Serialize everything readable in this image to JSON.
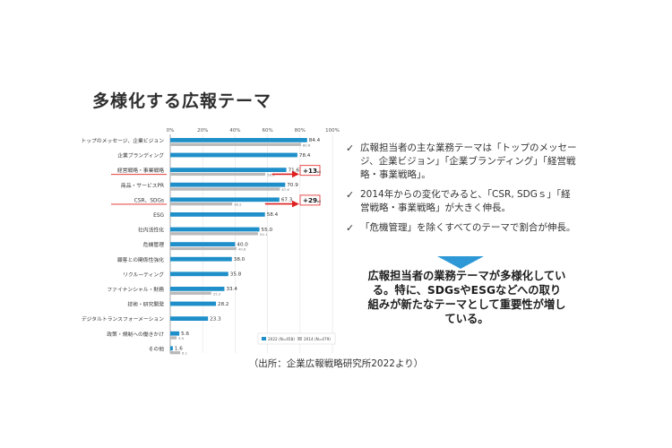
{
  "slide": {
    "title": "多様化する広報テーマ",
    "source": "（出所：企業広報戦略研究所2022より）"
  },
  "bullets": [
    "広報担当者の主な業務テーマは「トップのメッセージ、企業ビジョン」「企業ブランディング」「経営戦略・事業戦略」。",
    "2014年からの変化でみると、「CSR, SDGｓ」「経営戦略・事業戦略」が大きく伸長。",
    "「危機管理」を除くすべてのテーマで割合が伸長。"
  ],
  "conclusion": "広報担当者の業務テーマが多様化している。特に、SDGsやESGなどへの取り組みが新たなテーマとして重要性が増している。",
  "chart_data": {
    "type": "bar",
    "orientation": "horizontal",
    "xlim": [
      0,
      100
    ],
    "x_ticks": [
      "0%",
      "20%",
      "40%",
      "60%",
      "80%",
      "100%"
    ],
    "categories": [
      "トップのメッセージ、企業ビジョン",
      "企業ブランディング",
      "経営戦略・事業戦略",
      "商品・サービスPR",
      "CSR、SDGs",
      "ESG",
      "社内活性化",
      "危機管理",
      "顧客との関係性強化",
      "リクルーティング",
      "ファイナンシャル・財務",
      "技術・研究開発",
      "デジタルトランスフォーメーション",
      "政策・規制への働きかけ",
      "その他"
    ],
    "series": [
      {
        "name": "2022 (N=458)",
        "color": "#1f8fc9",
        "values": [
          84.4,
          78.4,
          71.6,
          70.9,
          67.3,
          58.4,
          55.0,
          40.0,
          38.0,
          35.8,
          33.4,
          28.2,
          23.3,
          5.6,
          1.6
        ]
      },
      {
        "name": "2014 (N=479)",
        "color": "#b9b9b9",
        "values": [
          80.6,
          null,
          58.6,
          67.6,
          38.2,
          null,
          54.1,
          40.8,
          null,
          null,
          25.3,
          null,
          null,
          3.9,
          6.1
        ]
      }
    ],
    "annotations": [
      {
        "category": "経営戦略・事業戦略",
        "text": "+13",
        "unit": "pt",
        "color": "#e02020"
      },
      {
        "category": "CSR、SDGs",
        "text": "+29",
        "unit": "pt",
        "color": "#e02020"
      }
    ],
    "legend_position": "bottom-right"
  }
}
